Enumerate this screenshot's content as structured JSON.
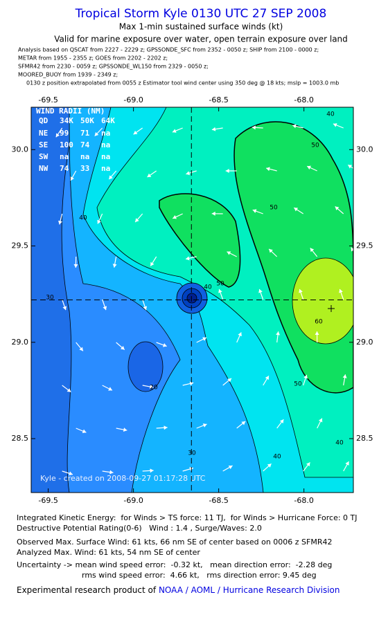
{
  "header": {
    "title": "Tropical Storm Kyle 0130 UTC 27 SEP 2008",
    "subtitle": "Max 1-min sustained surface winds (kt)",
    "validity": "Valid for marine exposure over water, open terrain exposure over land",
    "analysis_notes": [
      "Analysis based on  QSCAT from 2227 - 2229 z;  GPSSONDE_SFC from 2352 - 0050 z;  SHIP from 2100 - 0000 z;",
      "METAR from 1955 - 2355 z;  GOES from 2202 - 2202 z;",
      "SFMR42 from 2230 - 0059 z;  GPSSONDE_WL150 from 2329 - 0050 z;",
      "MOORED_BUOY from 1939 - 2349 z;",
      "0130 z position extrapolated from 0055 z Estimator tool wind center using 350 deg @ 18 kts; mslp = 1003.0 mb"
    ]
  },
  "map": {
    "xlim": [
      -69.6,
      -67.71
    ],
    "ylim": [
      28.22,
      30.22
    ],
    "xticks": [
      -69.5,
      {
        "value": -69,
        "label": "-69.0"
      },
      -68.5,
      {
        "value": -68,
        "label": "-68.0"
      }
    ],
    "yticks": [
      {
        "value": 30,
        "label": "30.0"
      },
      29.5,
      {
        "value": 29,
        "label": "29.0"
      },
      28.5
    ],
    "storm_center": {
      "lon": -68.66,
      "lat": 29.22
    },
    "wind_radii": {
      "title": "WIND RADII (NM)",
      "header": [
        "QD",
        "34K",
        "50K",
        "64K"
      ],
      "rows": [
        [
          "NE",
          99,
          71,
          "na"
        ],
        [
          "SE",
          100,
          74,
          "na"
        ],
        [
          "SW",
          "na",
          "na",
          "na"
        ],
        [
          "NW",
          74,
          33,
          "na"
        ]
      ]
    },
    "contour_labels": [
      40,
      50,
      50,
      40,
      30,
      50,
      40,
      60,
      20,
      50,
      40,
      30,
      40
    ],
    "watermark": "Kyle - created on 2008-09-27 01:17:28 UTC"
  },
  "footer": {
    "lines": [
      "Integrated Kinetic Energy:  for Winds > TS force: 11 TJ,  for Winds > Hurricane Force: 0 TJ",
      "Destructive Potential Rating(0-6)   Wind : 1.4 , Surge/Waves: 2.0",
      "Observed Max. Surface Wind: 61 kts, 66 nm SE of center based on 0006 z SFMR42",
      "Analyzed Max. Wind: 61 kts, 54 nm SE of center",
      "Uncertainty -> mean wind speed error:  -0.32 kt,   mean direction error:  -2.28 deg",
      "rms wind speed error:  4.66 kt,   rms direction error: 9.45 deg"
    ],
    "credit": "Experimental research product of",
    "link": "NOAA / AOML / Hurricane Research Division"
  }
}
